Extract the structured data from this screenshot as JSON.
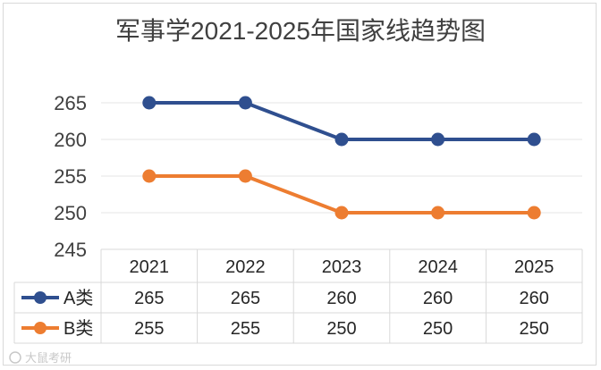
{
  "chart_data": {
    "type": "line",
    "title": "军事学2021-2025年国家线趋势图",
    "categories": [
      "2021",
      "2022",
      "2023",
      "2024",
      "2025"
    ],
    "series": [
      {
        "name": "A类",
        "color": "#2f4f8f",
        "values": [
          265,
          265,
          260,
          260,
          260
        ]
      },
      {
        "name": "B类",
        "color": "#ed7d31",
        "values": [
          255,
          255,
          250,
          250,
          250
        ]
      }
    ],
    "yticks": [
      "265",
      "260",
      "255",
      "250",
      "245"
    ],
    "ylim": [
      245,
      267
    ],
    "grid": true,
    "legend": "data-table",
    "data_table": [
      [
        "265",
        "265",
        "260",
        "260",
        "260"
      ],
      [
        "255",
        "255",
        "250",
        "250",
        "250"
      ]
    ]
  },
  "watermark": "大鼠考研"
}
